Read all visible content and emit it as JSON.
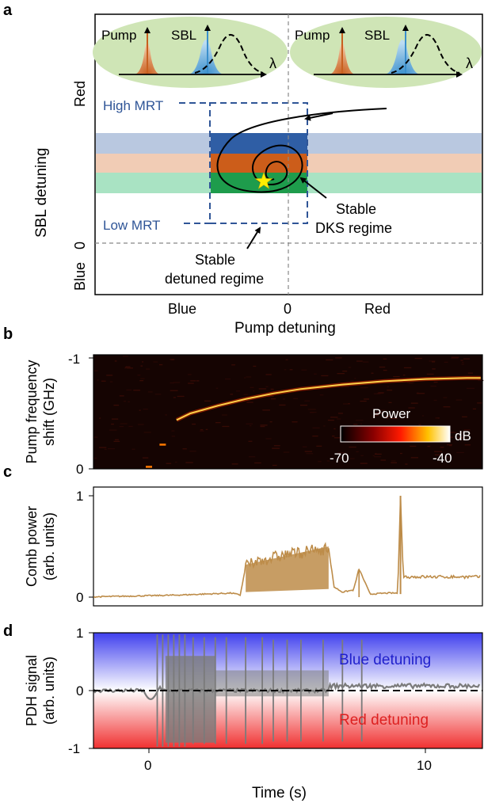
{
  "panel_labels": {
    "a": "a",
    "b": "b",
    "c": "c",
    "d": "d"
  },
  "colors": {
    "pump": "#c8601f",
    "sbl": "#3a8fcc",
    "green_oval": "#cfe5b6",
    "band_blue": "#b9c8e0",
    "band_orange": "#f1ccb5",
    "band_green": "#a9e3c3",
    "box_blue": "#2f5ea5",
    "box_orange": "#cc5d1a",
    "box_green": "#1e9c4c",
    "dashed_box": "#2f5597",
    "comb": "#bd8c49",
    "pdh": "#7b7b7b",
    "blue_region": "#3030e8",
    "red_region": "#ee2828",
    "star": "#ffee00"
  },
  "panel_a": {
    "insets": [
      {
        "pump": "Pump",
        "sbl": "SBL",
        "lambda": "λ"
      },
      {
        "pump": "Pump",
        "sbl": "SBL",
        "lambda": "λ"
      }
    ],
    "y_axis_title": "SBL detuning",
    "y_red": "Red",
    "y_blue": "Blue",
    "y_zero": "0",
    "x_blue": "Blue",
    "x_zero": "0",
    "x_red": "Red",
    "x_axis_title": "Pump detuning",
    "high_mrt": "High MRT",
    "low_mrt": "Low MRT",
    "stable_dks_1": "Stable",
    "stable_dks_2": "DKS regime",
    "stable_detuned_1": "Stable",
    "stable_detuned_2": "detuned regime"
  },
  "chart_data": [
    {
      "type": "heatmap",
      "panel": "b",
      "ylabel": [
        "Pump frequency",
        "shift (GHz)"
      ],
      "yticks": [
        "-1",
        "0"
      ],
      "ylim": [
        0,
        -1
      ],
      "xlim": [
        -2.5,
        12
      ],
      "colorbar": {
        "label": "Power",
        "unit": "dB",
        "min_label": "-70",
        "max_label": "-40"
      },
      "trace_points": [
        {
          "t": 0.0,
          "shift": -0.02
        },
        {
          "t": 0.5,
          "shift": -0.22
        },
        {
          "t": 1.0,
          "shift": -0.44
        },
        {
          "t": 1.5,
          "shift": -0.5
        },
        {
          "t": 2.5,
          "shift": -0.57
        },
        {
          "t": 3.5,
          "shift": -0.63
        },
        {
          "t": 4.5,
          "shift": -0.68
        },
        {
          "t": 5.5,
          "shift": -0.72
        },
        {
          "t": 7.0,
          "shift": -0.76
        },
        {
          "t": 8.5,
          "shift": -0.79
        },
        {
          "t": 10.0,
          "shift": -0.81
        },
        {
          "t": 11.5,
          "shift": -0.82
        },
        {
          "t": 12.0,
          "shift": -0.82
        }
      ]
    },
    {
      "type": "line",
      "panel": "c",
      "ylabel": [
        "Comb power",
        "(arb. units)"
      ],
      "yticks": [
        "0",
        "1"
      ],
      "ylim": [
        0,
        1
      ],
      "xlim": [
        -2.5,
        12
      ],
      "x": [
        -2.5,
        1.0,
        2.0,
        3.0,
        3.3,
        3.5,
        4.0,
        5.0,
        6.5,
        6.7,
        7.0,
        7.4,
        7.6,
        8.0,
        8.6,
        9.0,
        9.1,
        9.2,
        9.7,
        10.0,
        12.0
      ],
      "values": [
        0.0,
        0.02,
        0.03,
        0.04,
        0.02,
        0.3,
        0.36,
        0.42,
        0.48,
        0.1,
        0.05,
        0.07,
        0.28,
        0.03,
        0.04,
        0.04,
        1.0,
        0.2,
        0.2,
        0.2,
        0.2
      ]
    },
    {
      "type": "line",
      "panel": "d",
      "ylabel": [
        "PDH signal",
        "(arb. units)"
      ],
      "yticks": [
        "-1",
        "0",
        "1"
      ],
      "ylim": [
        -1,
        1
      ],
      "xlim": [
        -2.5,
        12
      ],
      "xticks": [
        "0",
        "10"
      ],
      "xlabel": "Time (s)",
      "region_labels": {
        "upper": "Blue detuning",
        "lower": "Red detuning"
      },
      "spikes_t": [
        0.3,
        0.5,
        0.7,
        0.9,
        1.1,
        1.3,
        1.6,
        2.0,
        2.4,
        2.8,
        3.5,
        4.1,
        4.5,
        5.0,
        5.5,
        6.3,
        7.0,
        7.7
      ],
      "baseline_before": 0.0,
      "baseline_after": 0.08
    }
  ]
}
